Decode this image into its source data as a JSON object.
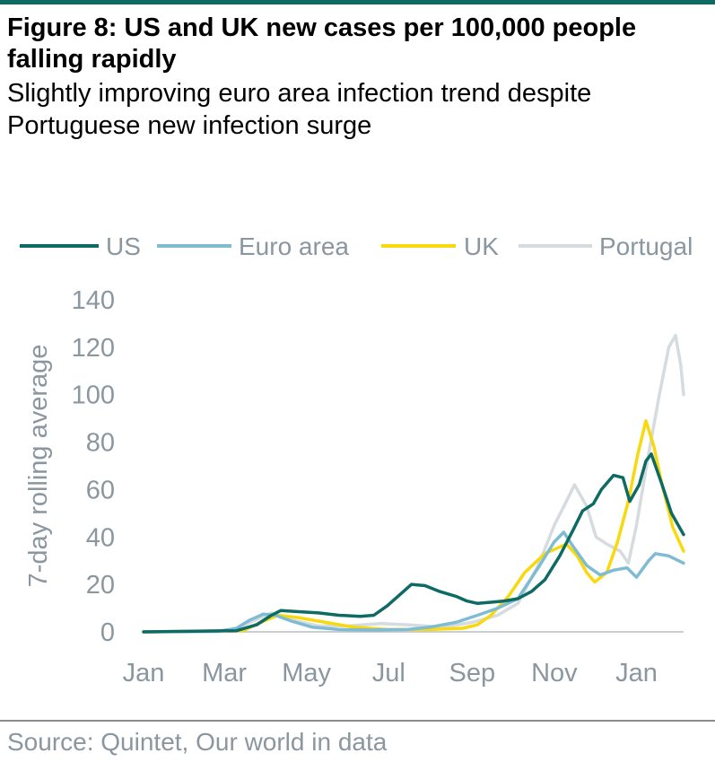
{
  "figure": {
    "title": "Figure 8: US and UK new cases per 100,000 people falling rapidly",
    "subtitle": "Slightly improving euro area infection trend despite Portuguese new infection surge",
    "source": "Source: Quintet, Our world in data"
  },
  "chart_data": {
    "type": "line",
    "title": "",
    "xlabel": "",
    "ylabel": "7-day rolling average",
    "ylim": [
      0,
      140
    ],
    "yticks": [
      0,
      20,
      40,
      60,
      80,
      100,
      120,
      140
    ],
    "xlim": [
      "2020-01-01",
      "2021-02-05"
    ],
    "xticks": [
      {
        "label": "Jan",
        "date": "2020-01-01"
      },
      {
        "label": "Mar",
        "date": "2020-03-01"
      },
      {
        "label": "May",
        "date": "2020-05-01"
      },
      {
        "label": "Jul",
        "date": "2020-07-01"
      },
      {
        "label": "Sep",
        "date": "2020-09-01"
      },
      {
        "label": "Nov",
        "date": "2020-11-01"
      },
      {
        "label": "Jan",
        "date": "2021-01-01"
      }
    ],
    "grid": false,
    "legend": "top",
    "series": [
      {
        "name": "US",
        "color": "#0e6b64",
        "points": [
          [
            "2020-01-01",
            0
          ],
          [
            "2020-03-10",
            0.5
          ],
          [
            "2020-03-25",
            3
          ],
          [
            "2020-04-05",
            7
          ],
          [
            "2020-04-12",
            9
          ],
          [
            "2020-04-25",
            8.5
          ],
          [
            "2020-05-10",
            8
          ],
          [
            "2020-05-25",
            7
          ],
          [
            "2020-06-10",
            6.5
          ],
          [
            "2020-06-20",
            7
          ],
          [
            "2020-06-30",
            11
          ],
          [
            "2020-07-10",
            16
          ],
          [
            "2020-07-18",
            20
          ],
          [
            "2020-07-28",
            19.5
          ],
          [
            "2020-08-08",
            17
          ],
          [
            "2020-08-20",
            15
          ],
          [
            "2020-08-28",
            13
          ],
          [
            "2020-09-05",
            12
          ],
          [
            "2020-09-15",
            12.5
          ],
          [
            "2020-09-25",
            13
          ],
          [
            "2020-10-05",
            14
          ],
          [
            "2020-10-15",
            17
          ],
          [
            "2020-10-25",
            22
          ],
          [
            "2020-11-05",
            32
          ],
          [
            "2020-11-15",
            43
          ],
          [
            "2020-11-22",
            51
          ],
          [
            "2020-11-30",
            54
          ],
          [
            "2020-12-06",
            60
          ],
          [
            "2020-12-15",
            66
          ],
          [
            "2020-12-22",
            65
          ],
          [
            "2020-12-27",
            55
          ],
          [
            "2021-01-03",
            62
          ],
          [
            "2021-01-08",
            72
          ],
          [
            "2021-01-12",
            75
          ],
          [
            "2021-01-20",
            62
          ],
          [
            "2021-01-27",
            50
          ],
          [
            "2021-02-05",
            41
          ]
        ]
      },
      {
        "name": "Euro area",
        "color": "#7fbcd3",
        "points": [
          [
            "2020-01-01",
            0
          ],
          [
            "2020-02-25",
            0.2
          ],
          [
            "2020-03-10",
            1.5
          ],
          [
            "2020-03-20",
            5
          ],
          [
            "2020-03-30",
            7.5
          ],
          [
            "2020-04-08",
            7
          ],
          [
            "2020-04-20",
            4.5
          ],
          [
            "2020-05-05",
            2
          ],
          [
            "2020-05-25",
            1
          ],
          [
            "2020-06-20",
            0.8
          ],
          [
            "2020-07-15",
            1
          ],
          [
            "2020-08-01",
            2
          ],
          [
            "2020-08-20",
            4
          ],
          [
            "2020-09-05",
            7
          ],
          [
            "2020-09-20",
            10
          ],
          [
            "2020-10-05",
            14
          ],
          [
            "2020-10-20",
            27
          ],
          [
            "2020-11-01",
            38
          ],
          [
            "2020-11-08",
            42
          ],
          [
            "2020-11-15",
            36
          ],
          [
            "2020-11-25",
            28
          ],
          [
            "2020-12-05",
            24
          ],
          [
            "2020-12-15",
            26
          ],
          [
            "2020-12-25",
            27
          ],
          [
            "2021-01-01",
            23
          ],
          [
            "2021-01-10",
            30
          ],
          [
            "2021-01-15",
            33
          ],
          [
            "2021-01-25",
            32
          ],
          [
            "2021-02-05",
            29
          ]
        ]
      },
      {
        "name": "UK",
        "color": "#f7d90e",
        "points": [
          [
            "2020-01-01",
            0
          ],
          [
            "2020-03-15",
            0.5
          ],
          [
            "2020-03-28",
            4
          ],
          [
            "2020-04-10",
            7
          ],
          [
            "2020-04-25",
            6
          ],
          [
            "2020-05-15",
            4
          ],
          [
            "2020-06-05",
            2
          ],
          [
            "2020-06-30",
            1
          ],
          [
            "2020-07-30",
            1
          ],
          [
            "2020-08-25",
            1.5
          ],
          [
            "2020-09-05",
            3
          ],
          [
            "2020-09-15",
            7
          ],
          [
            "2020-09-28",
            15
          ],
          [
            "2020-10-10",
            25
          ],
          [
            "2020-10-25",
            33
          ],
          [
            "2020-11-10",
            37
          ],
          [
            "2020-11-18",
            32
          ],
          [
            "2020-11-25",
            25
          ],
          [
            "2020-12-01",
            21
          ],
          [
            "2020-12-10",
            25
          ],
          [
            "2020-12-18",
            38
          ],
          [
            "2020-12-26",
            55
          ],
          [
            "2021-01-02",
            75
          ],
          [
            "2021-01-08",
            89
          ],
          [
            "2021-01-14",
            78
          ],
          [
            "2021-01-20",
            62
          ],
          [
            "2021-01-28",
            44
          ],
          [
            "2021-02-05",
            34
          ]
        ]
      },
      {
        "name": "Portugal",
        "color": "#d6dbe0",
        "points": [
          [
            "2020-01-01",
            0
          ],
          [
            "2020-03-05",
            0.3
          ],
          [
            "2020-03-20",
            4
          ],
          [
            "2020-04-05",
            8
          ],
          [
            "2020-04-20",
            5
          ],
          [
            "2020-05-10",
            2.5
          ],
          [
            "2020-06-01",
            2.5
          ],
          [
            "2020-06-25",
            3.5
          ],
          [
            "2020-07-15",
            3
          ],
          [
            "2020-08-10",
            2
          ],
          [
            "2020-09-01",
            4
          ],
          [
            "2020-09-20",
            7
          ],
          [
            "2020-10-05",
            12
          ],
          [
            "2020-10-20",
            28
          ],
          [
            "2020-11-01",
            45
          ],
          [
            "2020-11-10",
            55
          ],
          [
            "2020-11-16",
            62
          ],
          [
            "2020-11-25",
            53
          ],
          [
            "2020-12-02",
            40
          ],
          [
            "2020-12-10",
            37
          ],
          [
            "2020-12-20",
            34
          ],
          [
            "2020-12-26",
            29
          ],
          [
            "2021-01-01",
            45
          ],
          [
            "2021-01-10",
            75
          ],
          [
            "2021-01-18",
            100
          ],
          [
            "2021-01-25",
            120
          ],
          [
            "2021-01-30",
            125
          ],
          [
            "2021-02-03",
            112
          ],
          [
            "2021-02-05",
            100
          ]
        ]
      }
    ]
  }
}
